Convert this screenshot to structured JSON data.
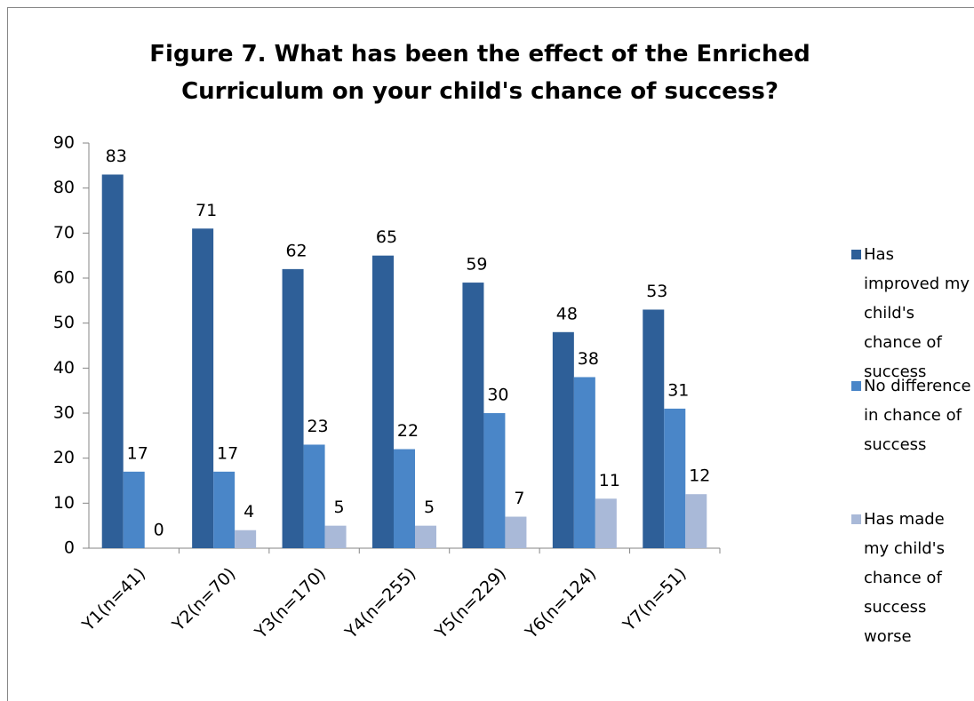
{
  "chart_data": {
    "type": "bar",
    "title": "Figure 7. What has been the effect of the Enriched Curriculum on your child's chance of success?",
    "categories": [
      "Y1(n=41)",
      "Y2(n=70)",
      "Y3(n=170)",
      "Y4(n=255)",
      "Y5(n=229)",
      "Y6(n=124)",
      "Y7(n=51)"
    ],
    "series": [
      {
        "name": "Has improved my child's chance of success",
        "color": "#2e5f98",
        "values": [
          83,
          71,
          62,
          65,
          59,
          48,
          53
        ]
      },
      {
        "name": "No difference in chance of success",
        "color": "#4a86c8",
        "values": [
          17,
          17,
          23,
          22,
          30,
          38,
          31
        ]
      },
      {
        "name": "Has made my child's chance of success worse",
        "color": "#a9b9d8",
        "values": [
          0,
          4,
          5,
          5,
          7,
          11,
          12
        ]
      }
    ],
    "ylim": [
      0,
      90
    ],
    "yticks": [
      0,
      10,
      20,
      30,
      40,
      50,
      60,
      70,
      80,
      90
    ],
    "legend": "right"
  }
}
